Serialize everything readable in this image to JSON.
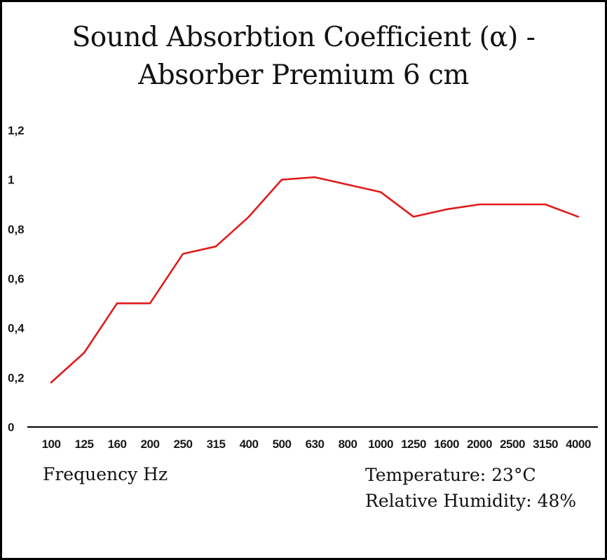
{
  "chart_data": {
    "type": "line",
    "title": "Sound Absorbtion Coefficient (α) - Absorber Premium 6 cm",
    "xlabel": "Frequency Hz",
    "ylabel": "",
    "categories": [
      "100",
      "125",
      "160",
      "200",
      "250",
      "315",
      "400",
      "500",
      "630",
      "800",
      "1000",
      "1250",
      "1600",
      "2000",
      "2500",
      "3150",
      "4000"
    ],
    "values": [
      0.18,
      0.3,
      0.5,
      0.5,
      0.7,
      0.73,
      0.85,
      1.0,
      1.01,
      0.98,
      0.95,
      0.85,
      0.88,
      0.9,
      0.9,
      0.9,
      0.85
    ],
    "ylim": [
      0,
      1.2
    ],
    "y_tick_values": [
      0,
      0.2,
      0.4,
      0.6,
      0.8,
      1,
      1.2
    ],
    "y_tick_labels": [
      "0",
      "0,2",
      "0,4",
      "0,6",
      "0,8",
      "1",
      "1,2"
    ],
    "grid": false,
    "legend": "none",
    "line_color": "#e01b1c",
    "axis_color": "#000000",
    "annotations": [
      "Temperature: 23°C",
      "Relative Humidity: 48%"
    ]
  }
}
